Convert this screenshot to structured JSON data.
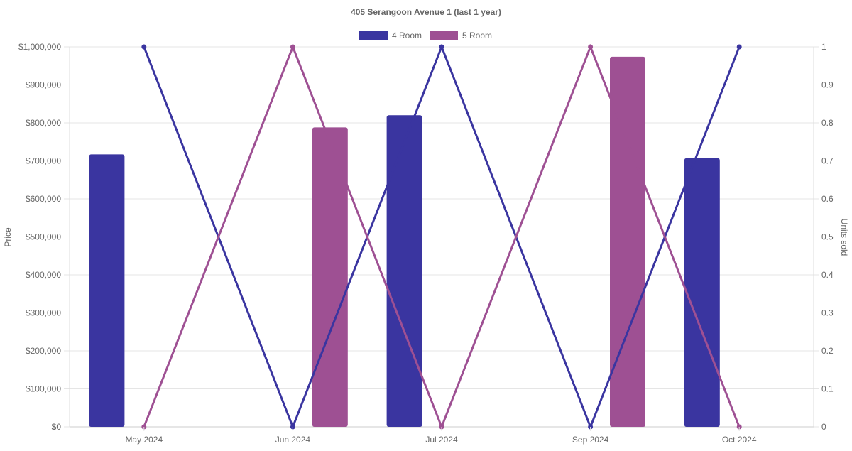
{
  "chart_data": {
    "type": "bar",
    "title": "405 Serangoon Avenue 1 (last 1 year)",
    "categories": [
      "May 2024",
      "Jun 2024",
      "Jul 2024",
      "Sep 2024",
      "Oct 2024"
    ],
    "ylabel": "Price",
    "y2label": "Units sold",
    "ylim": [
      0,
      1000000
    ],
    "y2lim": [
      0,
      1
    ],
    "yticks": [
      "$0",
      "$100,000",
      "$200,000",
      "$300,000",
      "$400,000",
      "$500,000",
      "$600,000",
      "$700,000",
      "$800,000",
      "$900,000",
      "$1,000,000"
    ],
    "y2ticks": [
      "0",
      "0.1",
      "0.2",
      "0.3",
      "0.4",
      "0.5",
      "0.6",
      "0.7",
      "0.8",
      "0.9",
      "1"
    ],
    "legend_position": "top",
    "grid": true,
    "series": [
      {
        "name": "4 Room",
        "color": "#3a35a0",
        "price": [
          717000,
          null,
          820000,
          null,
          707000
        ],
        "units": [
          1,
          0,
          1,
          0,
          1
        ]
      },
      {
        "name": "5 Room",
        "color": "#9e5093",
        "price": [
          null,
          788000,
          null,
          974000,
          null
        ],
        "units": [
          0,
          1,
          0,
          1,
          0
        ]
      }
    ]
  }
}
